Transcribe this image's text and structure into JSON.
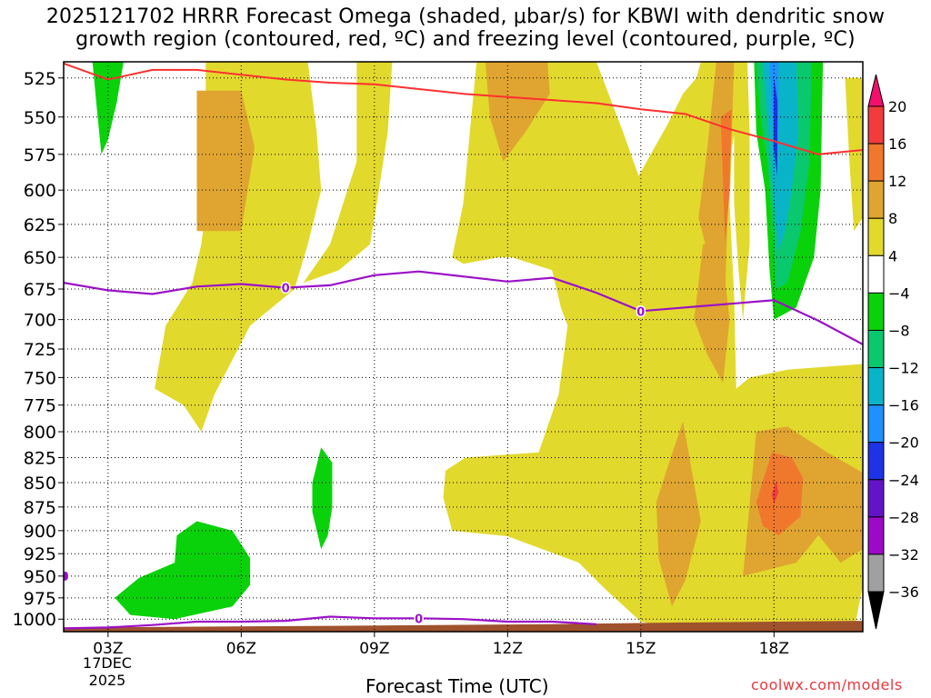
{
  "chart_data": {
    "type": "heatmap",
    "title_line1": "2025121702 HRRR Forecast Omega (shaded, μbar/s) for KBWI with dendritic snow",
    "title_line2": "growth region (contoured, red, ºC) and freezing level (contoured, purple, ºC)",
    "xlabel": "Forecast Time (UTC)",
    "x_ticks": [
      {
        "hour": 3,
        "label": "03Z"
      },
      {
        "hour": 6,
        "label": "06Z"
      },
      {
        "hour": 9,
        "label": "09Z"
      },
      {
        "hour": 12,
        "label": "12Z"
      },
      {
        "hour": 15,
        "label": "15Z"
      },
      {
        "hour": 18,
        "label": "18Z"
      }
    ],
    "xlim": [
      2,
      20
    ],
    "date_label_1": "17DEC",
    "date_label_2": "2025",
    "y_ticks": [
      525,
      550,
      575,
      600,
      625,
      650,
      675,
      700,
      725,
      750,
      775,
      800,
      825,
      850,
      875,
      900,
      925,
      950,
      975,
      1000
    ],
    "ylim": [
      515,
      1015
    ],
    "y_scale": "log",
    "colorbar": {
      "levels": [
        "20",
        "16",
        "12",
        "8",
        "4",
        "−4",
        "−8",
        "−12",
        "−16",
        "−20",
        "−24",
        "−28",
        "−32",
        "−36"
      ],
      "colors": [
        "#f20f6e",
        "#f23c3c",
        "#f0782d",
        "#e0a530",
        "#e2d92d",
        "#ffffff",
        "#0ad20a",
        "#0ac86e",
        "#0ab4c8",
        "#1e90ff",
        "#1e32e6",
        "#6414c8",
        "#9b0ac8",
        "#a0a0a0",
        "#000000"
      ]
    },
    "freezing_level_label": "0",
    "freezing_level_upper": [
      [
        2,
        670
      ],
      [
        3,
        676
      ],
      [
        4,
        679
      ],
      [
        5,
        673
      ],
      [
        6,
        671
      ],
      [
        7,
        674
      ],
      [
        8,
        672
      ],
      [
        9,
        664
      ],
      [
        10,
        661
      ],
      [
        11,
        665
      ],
      [
        12,
        669
      ],
      [
        13,
        666
      ],
      [
        14,
        678
      ],
      [
        15,
        693
      ],
      [
        16,
        690
      ],
      [
        17,
        687
      ],
      [
        18,
        684
      ],
      [
        19,
        701
      ],
      [
        20,
        721
      ]
    ],
    "freezing_level_lower": [
      [
        2,
        1011
      ],
      [
        3,
        1010
      ],
      [
        4,
        1007
      ],
      [
        5,
        1003
      ],
      [
        6,
        1003
      ],
      [
        7,
        1002
      ],
      [
        8,
        997
      ],
      [
        9,
        999
      ],
      [
        10,
        999
      ],
      [
        11,
        1000
      ],
      [
        12,
        1003
      ],
      [
        13,
        1003
      ],
      [
        14,
        1006
      ]
    ],
    "dgz_line": [
      [
        2,
        516
      ],
      [
        3,
        526
      ],
      [
        4,
        520
      ],
      [
        5,
        520
      ],
      [
        6,
        523
      ],
      [
        7,
        526
      ],
      [
        8,
        528
      ],
      [
        9,
        529
      ],
      [
        10,
        532
      ],
      [
        11,
        535
      ],
      [
        12,
        537
      ],
      [
        13,
        539
      ],
      [
        14,
        541
      ],
      [
        15,
        545
      ],
      [
        16,
        548
      ],
      [
        17,
        558
      ],
      [
        18,
        566
      ],
      [
        19,
        575
      ],
      [
        20,
        572
      ]
    ],
    "credit": "coolwx.com/models"
  }
}
